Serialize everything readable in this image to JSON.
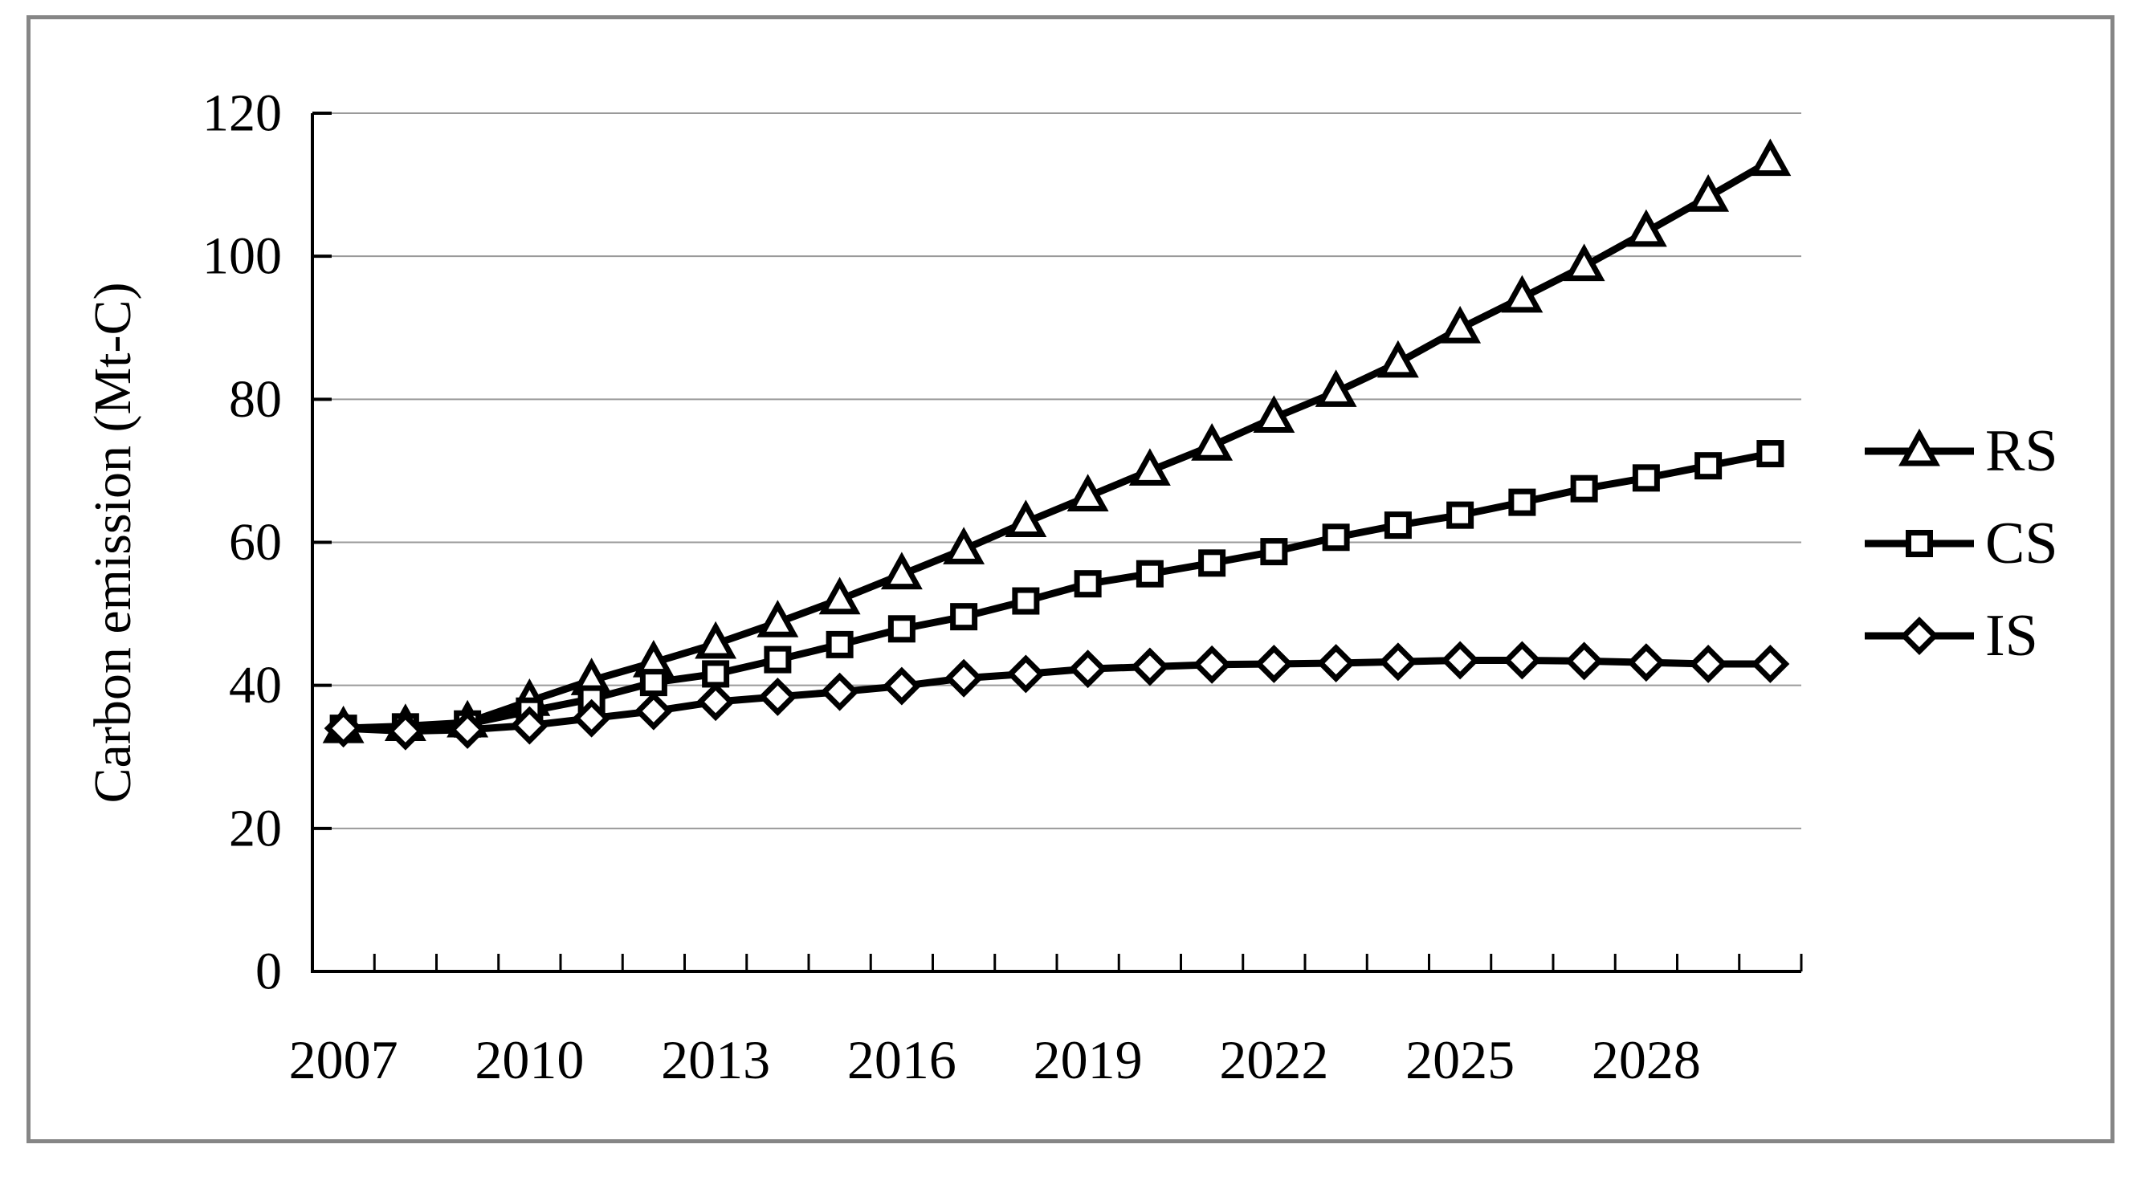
{
  "figure": {
    "background": "#ffffff",
    "border_color": "#868686",
    "axis_color": "#000000",
    "gridline_color": "#9a9a9a",
    "marker_fill": "#ffffff"
  },
  "chart_data": {
    "type": "line",
    "title": "",
    "xlabel": "",
    "ylabel": "Carbon emission (Mt-C)",
    "ylim": [
      0,
      120
    ],
    "yticks": [
      0,
      20,
      40,
      60,
      80,
      100,
      120
    ],
    "grid": "horizontal",
    "legend_position": "right",
    "x": [
      2007,
      2008,
      2009,
      2010,
      2011,
      2012,
      2013,
      2014,
      2015,
      2016,
      2017,
      2018,
      2019,
      2020,
      2021,
      2022,
      2023,
      2024,
      2025,
      2026,
      2027,
      2028,
      2029,
      2030
    ],
    "xtick_labels": [
      "2007",
      "2010",
      "2013",
      "2016",
      "2019",
      "2022",
      "2025",
      "2028"
    ],
    "series": [
      {
        "name": "RS",
        "marker": "triangle",
        "color": "#000000",
        "values": [
          34.0,
          34.3,
          34.8,
          37.8,
          40.7,
          43.2,
          45.8,
          48.8,
          52.0,
          55.5,
          59.0,
          62.8,
          66.4,
          70.0,
          73.5,
          77.4,
          81.0,
          85.1,
          89.9,
          94.2,
          98.6,
          103.4,
          108.3,
          113.3
        ]
      },
      {
        "name": "CS",
        "marker": "square",
        "color": "#000000",
        "values": [
          34.0,
          34.2,
          34.6,
          36.4,
          38.1,
          40.4,
          41.6,
          43.6,
          45.7,
          47.9,
          49.6,
          51.8,
          54.2,
          55.6,
          57.1,
          58.7,
          60.7,
          62.4,
          63.8,
          65.6,
          67.5,
          69.0,
          70.7,
          72.4
        ]
      },
      {
        "name": "IS",
        "marker": "diamond",
        "color": "#000000",
        "values": [
          34.0,
          33.6,
          33.8,
          34.4,
          35.4,
          36.4,
          37.7,
          38.4,
          39.1,
          39.9,
          41.0,
          41.6,
          42.3,
          42.6,
          42.9,
          43.0,
          43.1,
          43.3,
          43.5,
          43.5,
          43.4,
          43.2,
          43.0,
          43.0
        ]
      }
    ]
  }
}
